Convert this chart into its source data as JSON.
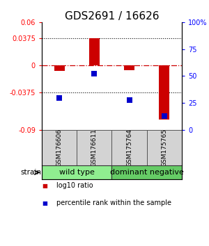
{
  "title": "GDS2691 / 16626",
  "samples": [
    "GSM176606",
    "GSM176611",
    "GSM175764",
    "GSM175765"
  ],
  "log10_ratio": [
    -0.008,
    0.038,
    -0.007,
    -0.075
  ],
  "percentile_rank": [
    30,
    52,
    28,
    13
  ],
  "bar_color": "#cc0000",
  "dot_color": "#0000cc",
  "ylim_left": [
    -0.09,
    0.06
  ],
  "ylim_right": [
    0,
    100
  ],
  "yticks_left": [
    -0.09,
    -0.0375,
    0,
    0.0375,
    0.06
  ],
  "ytick_labels_left": [
    "-0.09",
    "-0.0375",
    "0",
    "0.0375",
    "0.06"
  ],
  "yticks_right": [
    0,
    25,
    50,
    75,
    100
  ],
  "ytick_labels_right": [
    "0",
    "25",
    "50",
    "75",
    "100%"
  ],
  "hlines_dotted": [
    0.0375,
    -0.0375
  ],
  "zero_line_color": "#cc0000",
  "groups": [
    {
      "label": "wild type",
      "color": "#90ee90"
    },
    {
      "label": "dominant negative",
      "color": "#66cc66"
    }
  ],
  "strain_label": "strain",
  "legend_red": "log10 ratio",
  "legend_blue": "percentile rank within the sample",
  "bar_width": 0.3,
  "dot_size": 30,
  "title_fontsize": 11,
  "tick_fontsize": 7,
  "label_fontsize": 8,
  "group_label_fontsize": 8,
  "sample_fontsize": 6.5
}
